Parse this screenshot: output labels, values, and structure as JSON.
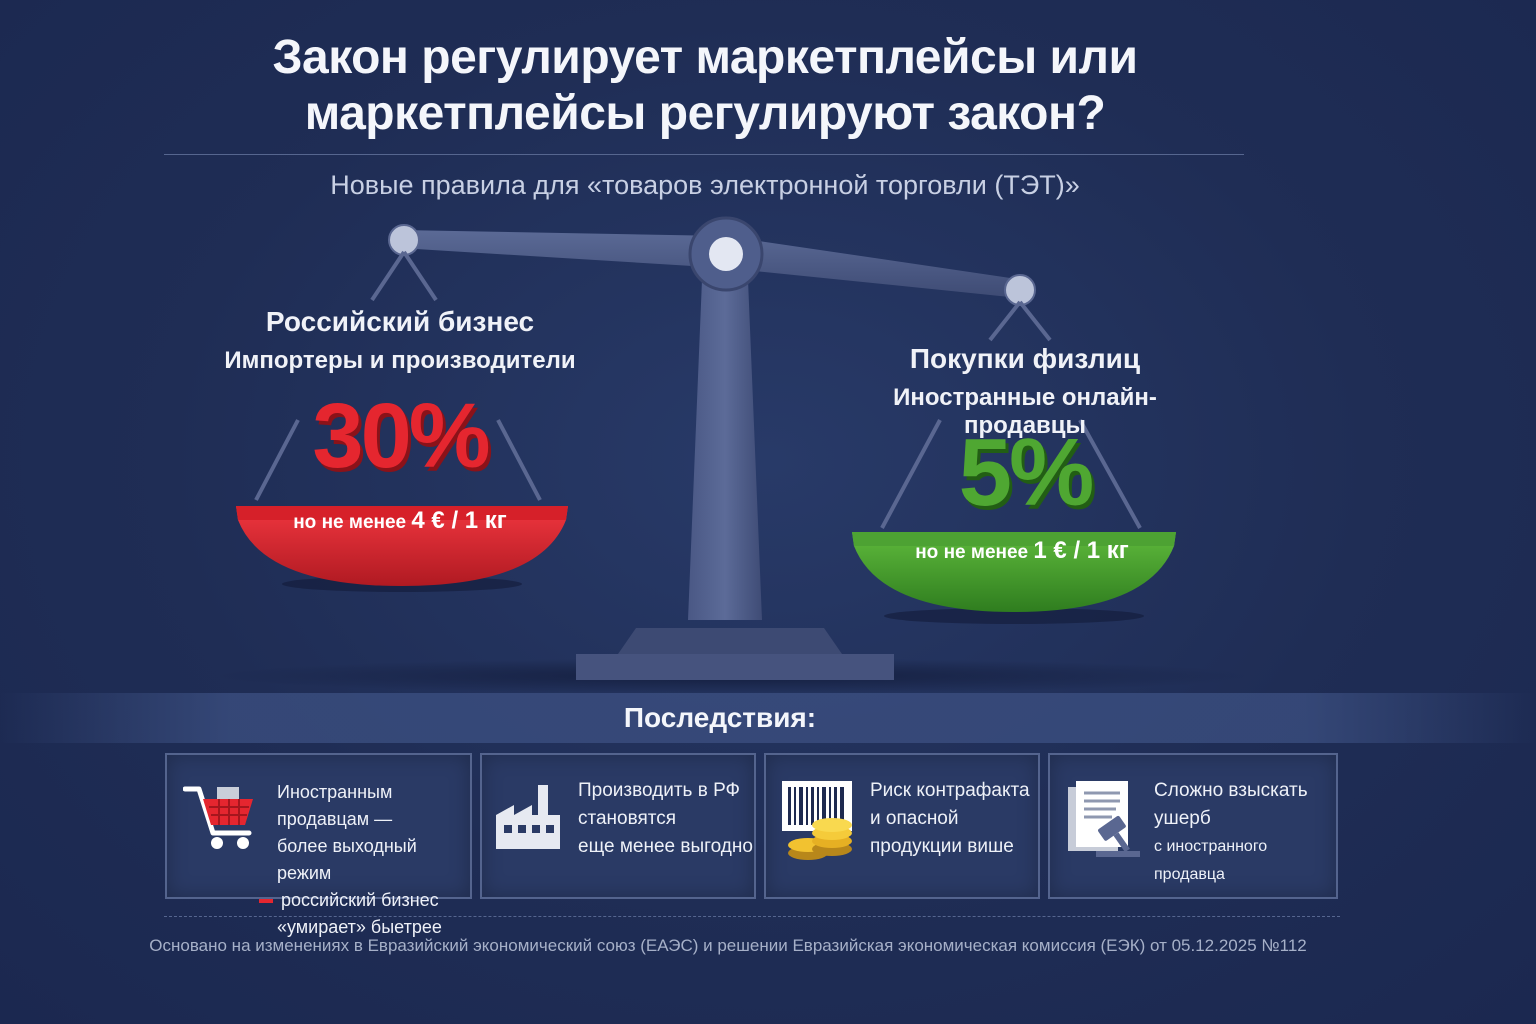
{
  "title": "Закон регулирует маркетплейсы или маркетплейсы регулируют закон?",
  "subtitle": "Новые правила для «товаров электронной торговли (ТЭТ)»",
  "left": {
    "heading1": "Российский бизнес",
    "heading2": "Импортеры и производители",
    "rate": "30%",
    "note_prefix": "но не менее",
    "note_value": "4 € / 1 кг",
    "color": "#e5262f"
  },
  "right": {
    "heading1": "Покупки физлиц",
    "heading2": "Иностранные онлайн-продавцы",
    "rate": "5%",
    "note_prefix": "но не менее",
    "note_value": "1 € / 1 кг",
    "color": "#4fa732"
  },
  "consequences": {
    "title": "Последствия:",
    "cards": [
      {
        "icon": "shopping-cart-icon",
        "lines": [
          "Иностранным продавцам —",
          "более выходный режим",
          "российский бизнес",
          "«умирает» быетрее"
        ]
      },
      {
        "icon": "factory-icon",
        "lines": [
          "Производить в РФ",
          "становятся",
          "еще менее выгодно"
        ]
      },
      {
        "icon": "barcode-coins-icon",
        "lines": [
          "Риск контрафакта",
          "и опасной",
          "продукции више"
        ]
      },
      {
        "icon": "document-gavel-icon",
        "lines": [
          "Сложно взыскать",
          "ушерб",
          "с иностранного продавца"
        ]
      }
    ]
  },
  "footer": "Основано на изменениях в Евразийский экономический союз (ЕАЭС) и решении Евразийская экономическая комиссия (ЕЭК) от 05.12.2025 №112"
}
